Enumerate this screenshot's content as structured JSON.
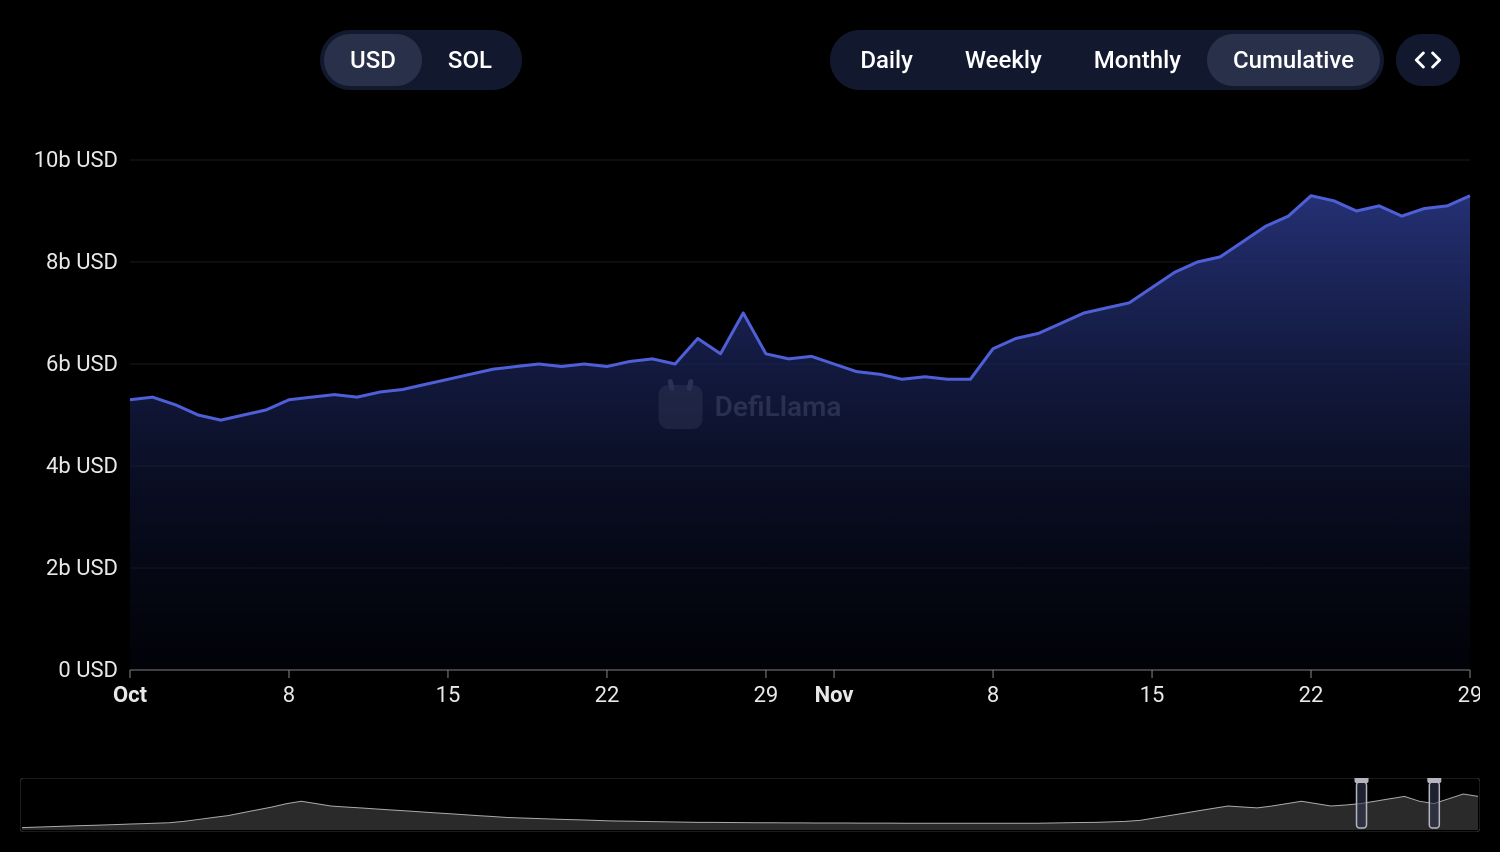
{
  "currency_toggle": {
    "options": [
      "USD",
      "SOL"
    ],
    "active": "USD"
  },
  "interval_toggle": {
    "options": [
      "Daily",
      "Weekly",
      "Monthly",
      "Cumulative"
    ],
    "active": "Cumulative"
  },
  "watermark": "DefiLlama",
  "chart": {
    "type": "area",
    "line_color": "#4f5fd8",
    "fill_top": "#26337a",
    "fill_bottom": "#05081a",
    "background": "#000000",
    "grid_color": "#1a1a1a",
    "axis_color": "#555555",
    "text_color": "#e8e8e8",
    "line_width": 3,
    "y": {
      "min": 0,
      "max": 10,
      "ticks": [
        0,
        2,
        4,
        6,
        8,
        10
      ],
      "tick_labels": [
        "0 USD",
        "2b USD",
        "4b USD",
        "6b USD",
        "8b USD",
        "10b USD"
      ]
    },
    "x": {
      "ticks": [
        0,
        7,
        14,
        21,
        28,
        31,
        38,
        45,
        52,
        59
      ],
      "tick_labels": [
        "Oct",
        "8",
        "15",
        "22",
        "29",
        "Nov",
        "8",
        "15",
        "22",
        "29"
      ],
      "bold_labels": [
        "Oct",
        "Nov"
      ],
      "count": 60
    },
    "series": [
      5.3,
      5.35,
      5.2,
      5.0,
      4.9,
      5.0,
      5.1,
      5.3,
      5.35,
      5.4,
      5.35,
      5.45,
      5.5,
      5.6,
      5.7,
      5.8,
      5.9,
      5.95,
      6.0,
      5.95,
      6.0,
      5.95,
      6.05,
      6.1,
      6.0,
      6.5,
      6.2,
      7.0,
      6.2,
      6.1,
      6.15,
      6.0,
      5.85,
      5.8,
      5.7,
      5.75,
      5.7,
      5.7,
      6.3,
      6.5,
      6.6,
      6.8,
      7.0,
      7.1,
      7.2,
      7.5,
      7.8,
      8.0,
      8.1,
      8.4,
      8.7,
      8.9,
      9.3,
      9.2,
      9.0,
      9.1,
      8.9,
      9.05,
      9.1,
      9.3
    ]
  },
  "brush": {
    "line_color": "#aaaaaa",
    "fill_color": "#2a2a2a",
    "handle_color": "#b5b5c0",
    "background": "#000000",
    "border_color": "#333333",
    "window_start": 0.92,
    "window_end": 0.97,
    "series": [
      0.05,
      0.06,
      0.07,
      0.08,
      0.09,
      0.1,
      0.11,
      0.12,
      0.13,
      0.14,
      0.15,
      0.18,
      0.22,
      0.26,
      0.3,
      0.36,
      0.42,
      0.48,
      0.55,
      0.6,
      0.55,
      0.5,
      0.48,
      0.46,
      0.44,
      0.42,
      0.4,
      0.38,
      0.36,
      0.34,
      0.32,
      0.3,
      0.28,
      0.26,
      0.25,
      0.24,
      0.23,
      0.22,
      0.21,
      0.2,
      0.19,
      0.185,
      0.18,
      0.175,
      0.17,
      0.165,
      0.16,
      0.158,
      0.156,
      0.154,
      0.152,
      0.15,
      0.149,
      0.148,
      0.147,
      0.146,
      0.145,
      0.144,
      0.143,
      0.142,
      0.141,
      0.14,
      0.14,
      0.14,
      0.14,
      0.14,
      0.14,
      0.14,
      0.14,
      0.14,
      0.145,
      0.15,
      0.155,
      0.16,
      0.17,
      0.18,
      0.2,
      0.25,
      0.3,
      0.35,
      0.4,
      0.45,
      0.5,
      0.48,
      0.46,
      0.5,
      0.55,
      0.6,
      0.55,
      0.5,
      0.52,
      0.55,
      0.6,
      0.65,
      0.7,
      0.6,
      0.55,
      0.65,
      0.75,
      0.7
    ]
  }
}
